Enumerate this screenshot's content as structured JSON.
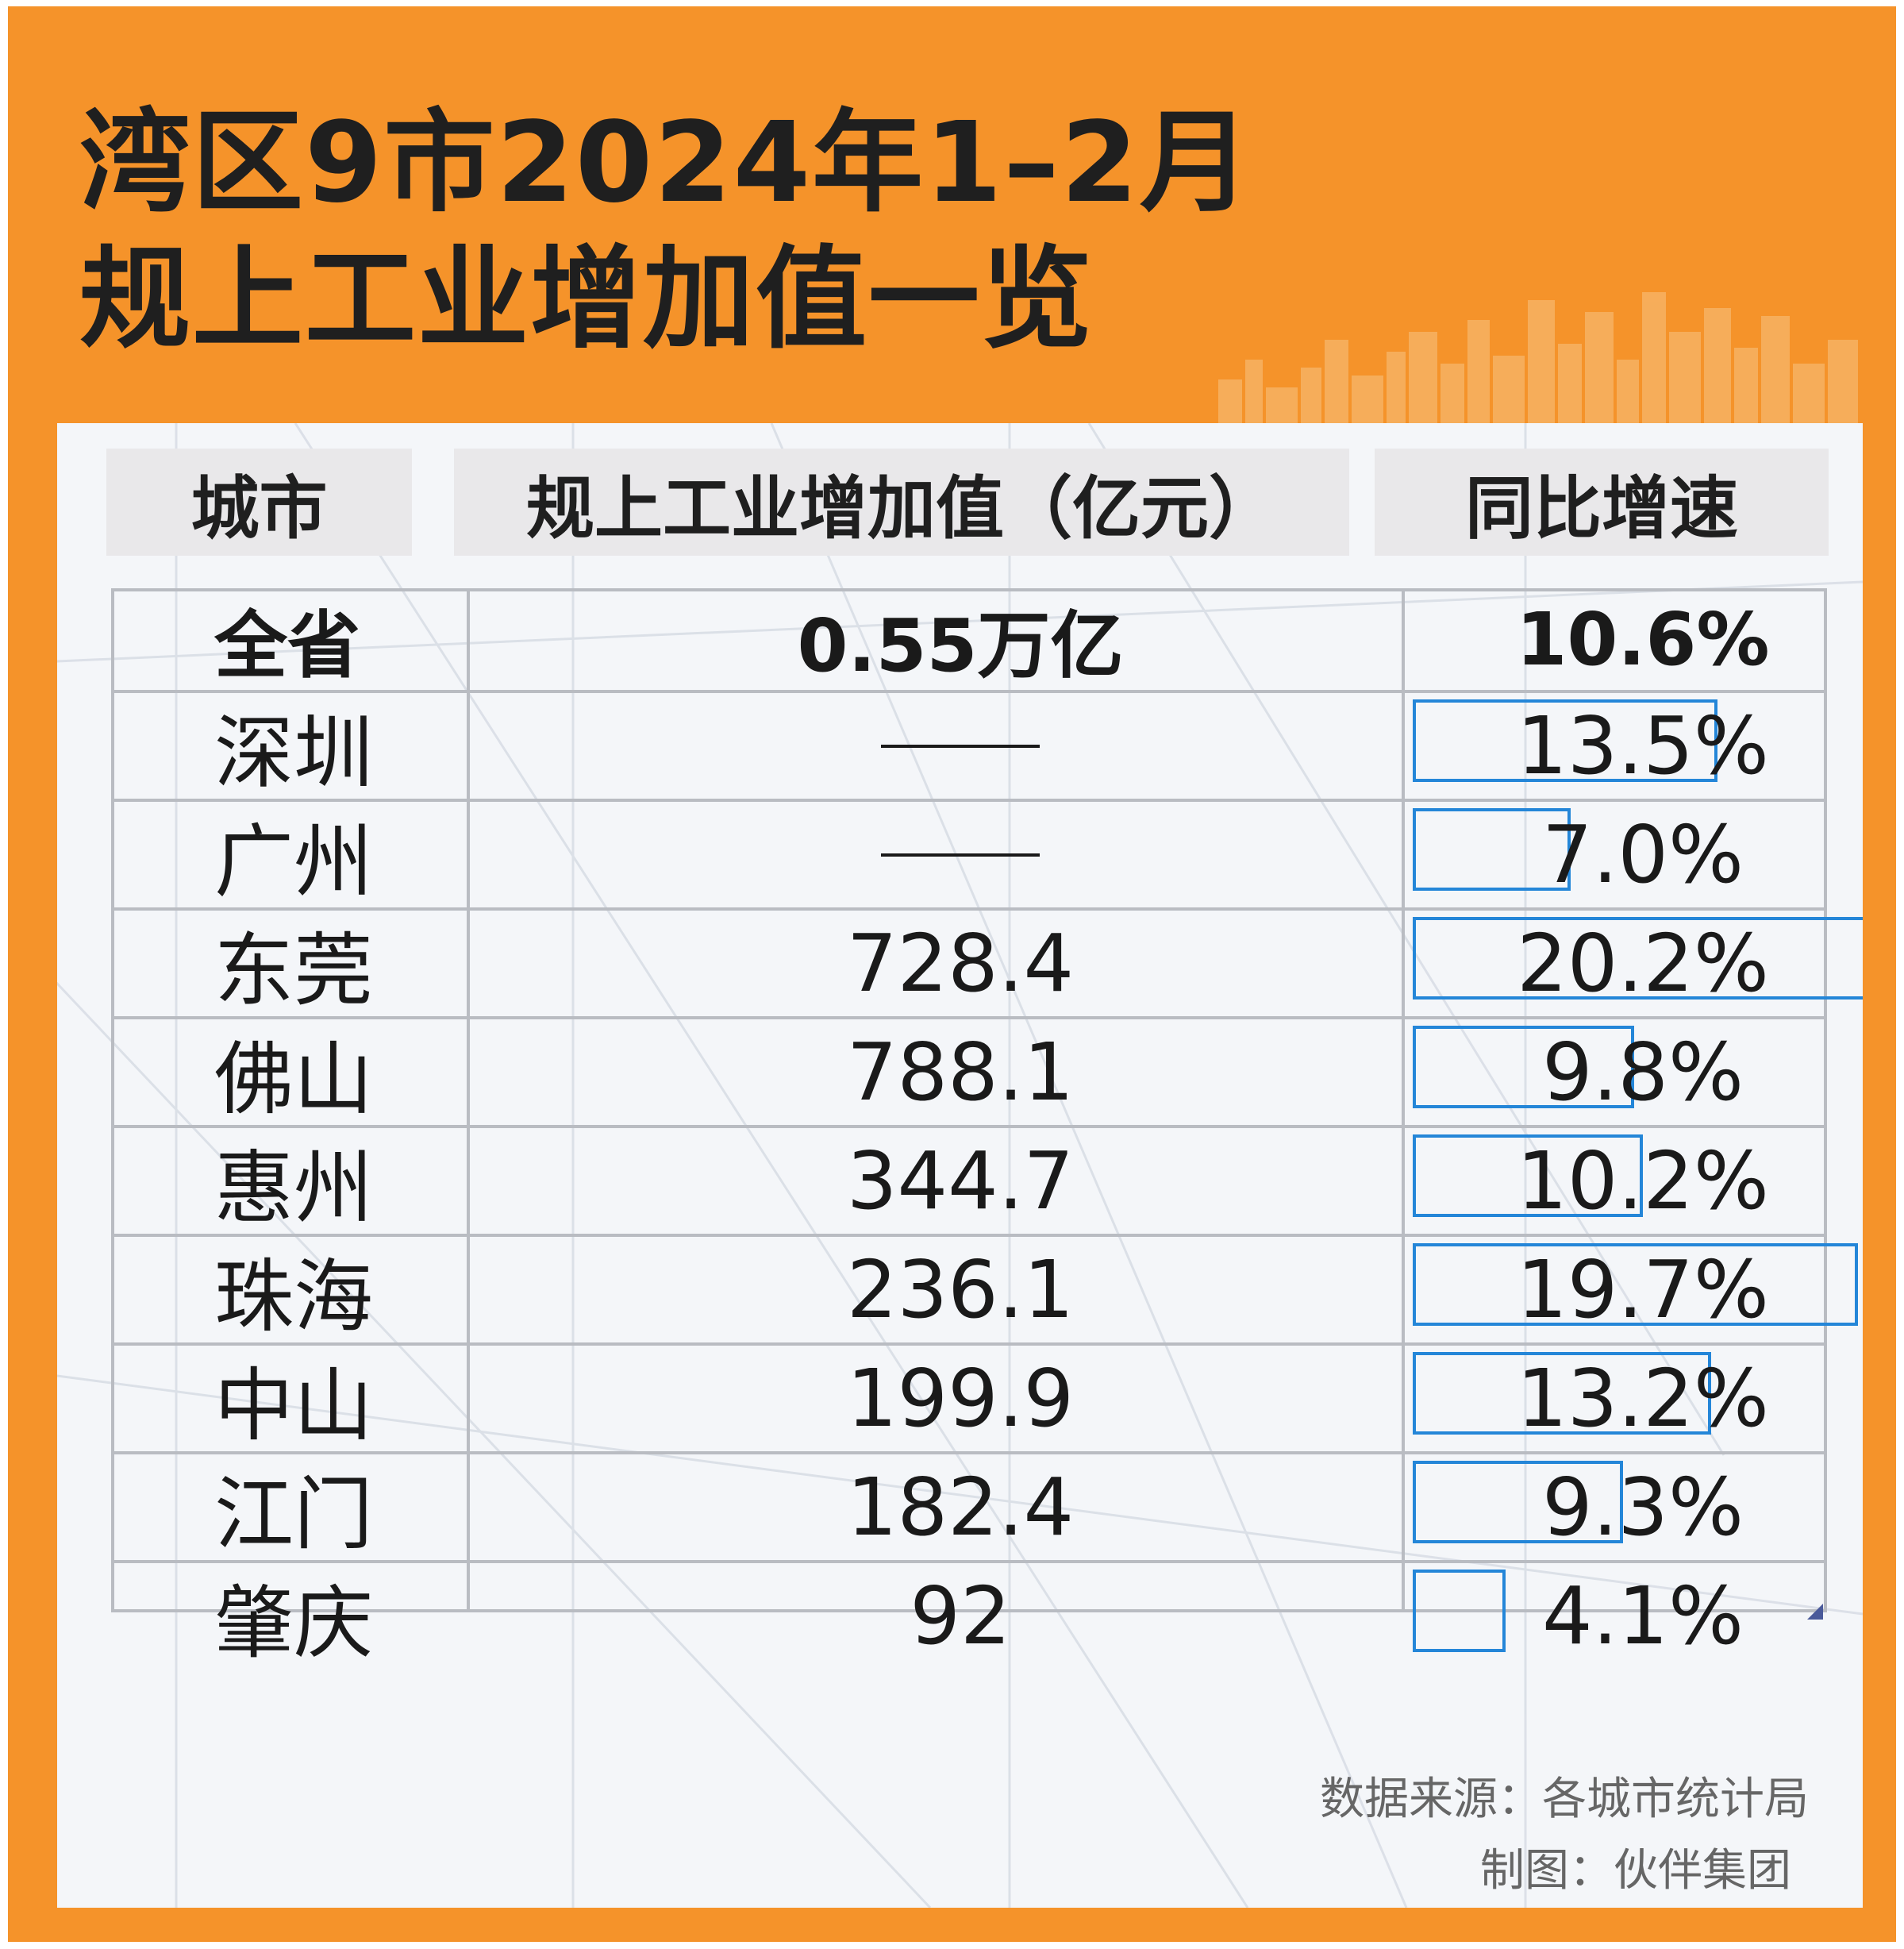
{
  "title": "湾区9市2024年1–2月\n规上工业增加值一览",
  "table": {
    "headers": [
      "城市",
      "规上工业增加值（亿元）",
      "同比增速"
    ]
  },
  "chart_data": {
    "type": "table",
    "columns": [
      "城市",
      "规上工业增加值（亿元）",
      "同比增速"
    ],
    "summary_row": {
      "city": "全省",
      "value_text": "0.55万亿",
      "growth_text": "10.6%",
      "growth": 10.6
    },
    "rows": [
      {
        "city": "深圳",
        "value_text": "——",
        "value": null,
        "growth_text": "13.5%",
        "growth": 13.5
      },
      {
        "city": "广州",
        "value_text": "——",
        "value": null,
        "growth_text": "7.0%",
        "growth": 7.0
      },
      {
        "city": "东莞",
        "value_text": "728.4",
        "value": 728.4,
        "growth_text": "20.2%",
        "growth": 20.2
      },
      {
        "city": "佛山",
        "value_text": "788.1",
        "value": 788.1,
        "growth_text": "9.8%",
        "growth": 9.8
      },
      {
        "city": "惠州",
        "value_text": "344.7",
        "value": 344.7,
        "growth_text": "10.2%",
        "growth": 10.2
      },
      {
        "city": "珠海",
        "value_text": "236.1",
        "value": 236.1,
        "growth_text": "19.7%",
        "growth": 19.7
      },
      {
        "city": "中山",
        "value_text": "199.9",
        "value": 199.9,
        "growth_text": "13.2%",
        "growth": 13.2
      },
      {
        "city": "江门",
        "value_text": "182.4",
        "value": 182.4,
        "growth_text": "9.3%",
        "growth": 9.3
      },
      {
        "city": "肇庆",
        "value_text": "92",
        "value": 92,
        "growth_text": "4.1%",
        "growth": 4.1
      }
    ],
    "growth_bar_color": "#2486d8"
  },
  "footer": {
    "source": "数据来源：各城市统计局",
    "credit": "制图：伙伴集团"
  },
  "colors": {
    "frame": "#f5932a",
    "header_bg": "#e9e8ea",
    "text": "#1a1a1a"
  }
}
